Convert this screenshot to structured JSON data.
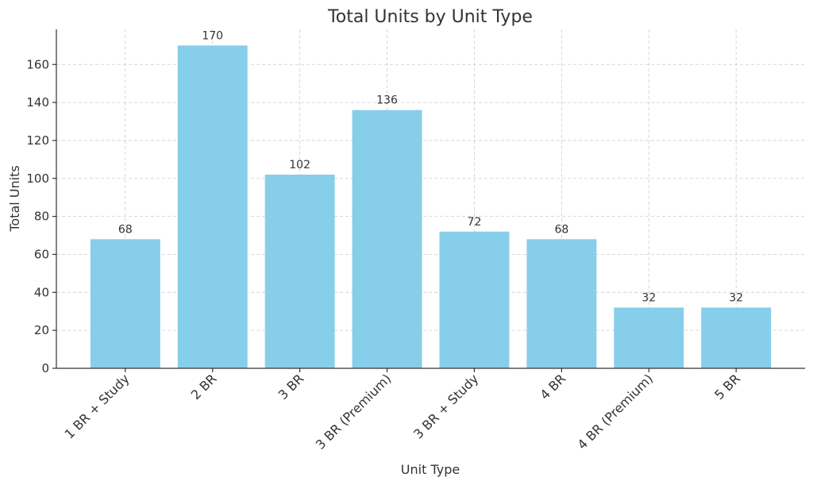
{
  "chart_data": {
    "type": "bar",
    "title": "Total Units by Unit Type",
    "x_label": "Unit Type",
    "y_label": "Total Units",
    "categories": [
      "1 BR + Study",
      "2 BR",
      "3 BR",
      "3 BR (Premium)",
      "3 BR + Study",
      "4 BR",
      "4 BR (Premium)",
      "5 BR"
    ],
    "values": [
      68,
      170,
      102,
      136,
      72,
      68,
      32,
      32
    ],
    "color": "#87ceeb",
    "ylim": [
      0,
      178.5
    ],
    "yticks": [
      0,
      20,
      40,
      60,
      80,
      100,
      120,
      140,
      160
    ],
    "grid": true
  }
}
